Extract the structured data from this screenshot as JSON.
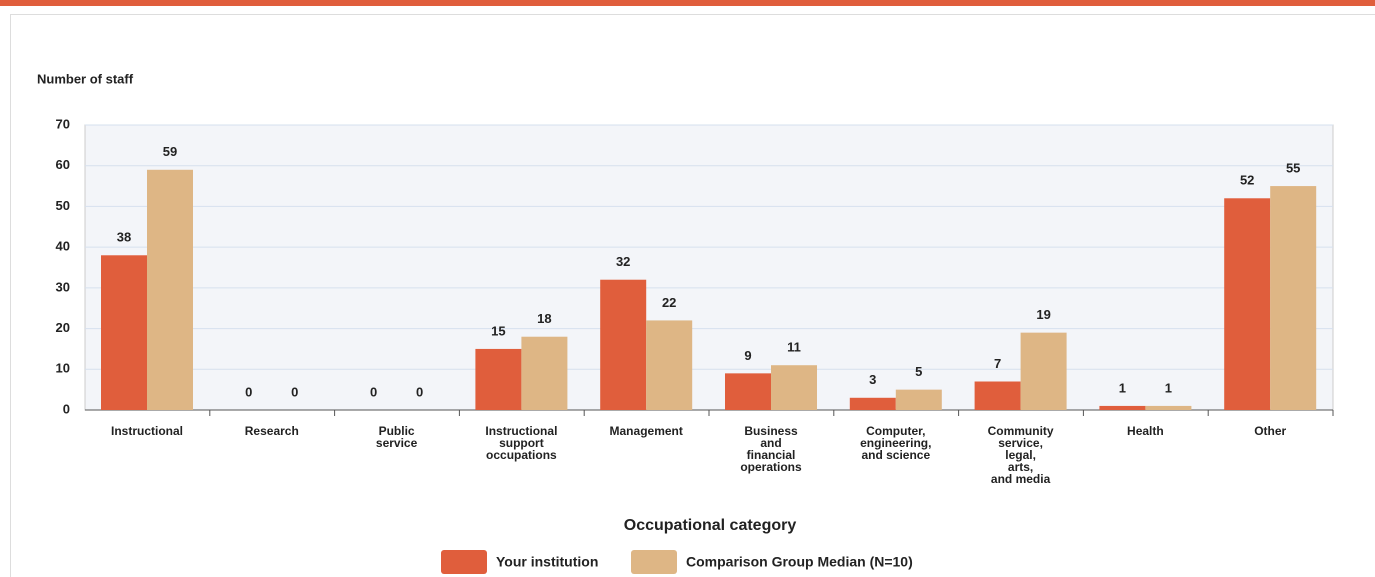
{
  "chart_data": {
    "type": "bar",
    "y_label": "Number of staff",
    "x_label": "Occupational category",
    "categories": [
      [
        "Instructional"
      ],
      [
        "Research"
      ],
      [
        "Public",
        "service"
      ],
      [
        "Instructional",
        "support",
        "occupations"
      ],
      [
        "Management"
      ],
      [
        "Business",
        "and",
        "financial",
        "operations"
      ],
      [
        "Computer,",
        "engineering,",
        "and science"
      ],
      [
        "Community",
        "service,",
        "legal,",
        "arts,",
        "and media"
      ],
      [
        "Health"
      ],
      [
        "Other"
      ]
    ],
    "series": [
      {
        "name": "Your institution",
        "color": "#e05e3c",
        "values": [
          38,
          0,
          0,
          15,
          32,
          9,
          3,
          7,
          1,
          52
        ]
      },
      {
        "name": "Comparison Group Median (N=10)",
        "color": "#deb685",
        "values": [
          59,
          0,
          0,
          18,
          22,
          11,
          5,
          19,
          1,
          55
        ]
      }
    ],
    "ylim": [
      0,
      70
    ],
    "yticks": [
      0,
      10,
      20,
      30,
      40,
      50,
      60,
      70
    ],
    "grid": true
  }
}
